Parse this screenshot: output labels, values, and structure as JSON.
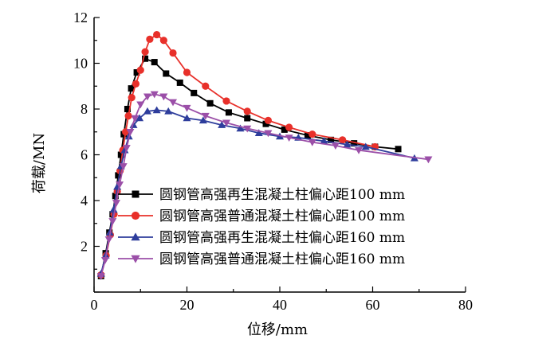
{
  "chart_data": {
    "type": "line",
    "title": "",
    "xlabel": "位移/mm",
    "ylabel": "荷载/MN",
    "xlim": [
      0,
      80
    ],
    "ylim": [
      0,
      12
    ],
    "x_ticks": [
      "0",
      "20",
      "40",
      "60",
      "80"
    ],
    "y_ticks": [
      "2",
      "4",
      "6",
      "8",
      "10",
      "12"
    ],
    "grid": false,
    "legend_position": "center-right",
    "series": [
      {
        "name": "圆钢管高强再生混凝土柱偏心距100 mm",
        "color": "#000000",
        "marker": "square",
        "x": [
          1.5,
          2.5,
          3.3,
          4.0,
          4.6,
          5.2,
          5.8,
          6.4,
          7.2,
          8.0,
          9.2,
          11.0,
          13.0,
          15.5,
          18.5,
          21.5,
          25.0,
          29.0,
          33.0,
          37.0,
          41.0,
          46.0,
          51.0,
          56.0,
          60.5,
          65.5
        ],
        "y": [
          0.7,
          1.7,
          2.6,
          3.4,
          4.2,
          5.1,
          6.0,
          6.9,
          8.0,
          8.9,
          9.6,
          10.2,
          10.05,
          9.55,
          9.15,
          8.7,
          8.25,
          7.85,
          7.6,
          7.35,
          7.1,
          6.85,
          6.65,
          6.5,
          6.35,
          6.25
        ]
      },
      {
        "name": "圆钢管高强普通混凝土柱偏心距100 mm",
        "color": "#e8302a",
        "marker": "circle",
        "x": [
          1.5,
          2.6,
          3.5,
          4.3,
          5.0,
          5.6,
          6.2,
          6.8,
          7.4,
          8.1,
          9.0,
          10.0,
          11.0,
          12.0,
          13.5,
          15.0,
          17.0,
          20.0,
          24.0,
          28.5,
          33.0,
          37.5,
          42.0,
          47.0,
          53.5,
          60.5
        ],
        "y": [
          0.75,
          1.6,
          2.5,
          3.4,
          4.4,
          5.3,
          6.2,
          7.0,
          7.7,
          8.5,
          9.1,
          9.7,
          10.5,
          11.05,
          11.25,
          11.0,
          10.45,
          9.6,
          9.0,
          8.35,
          7.9,
          7.5,
          7.2,
          6.9,
          6.65,
          6.35
        ]
      },
      {
        "name": "圆钢管高强再生混凝土柱偏心距160 mm",
        "color": "#2e3d9c",
        "marker": "triangle-up",
        "x": [
          1.5,
          2.5,
          3.4,
          4.2,
          5.0,
          5.8,
          6.6,
          7.5,
          8.5,
          9.8,
          11.5,
          13.5,
          16.0,
          20.0,
          23.5,
          27.5,
          31.5,
          35.5,
          40.0,
          44.0,
          49.5,
          54.5,
          58.5,
          69.0
        ],
        "y": [
          0.8,
          1.6,
          2.6,
          3.6,
          4.6,
          5.5,
          6.2,
          6.8,
          7.3,
          7.6,
          7.9,
          7.95,
          7.9,
          7.6,
          7.5,
          7.3,
          7.15,
          6.95,
          6.8,
          6.75,
          6.6,
          6.45,
          6.35,
          5.85
        ]
      },
      {
        "name": "圆钢管高强普通混凝土柱偏心距160 mm",
        "color": "#9b4fa8",
        "marker": "triangle-down",
        "x": [
          1.5,
          2.4,
          3.2,
          4.0,
          4.8,
          5.5,
          6.3,
          7.0,
          7.8,
          8.8,
          10.0,
          11.5,
          13.0,
          15.0,
          17.0,
          20.0,
          24.0,
          28.5,
          33.0,
          37.5,
          42.0,
          47.0,
          52.0,
          57.0,
          72.0
        ],
        "y": [
          0.7,
          1.4,
          2.3,
          3.1,
          3.9,
          4.7,
          5.5,
          6.3,
          7.0,
          7.6,
          8.2,
          8.55,
          8.65,
          8.55,
          8.3,
          8.05,
          7.7,
          7.4,
          7.15,
          6.95,
          6.75,
          6.55,
          6.4,
          6.2,
          5.8
        ]
      }
    ]
  }
}
